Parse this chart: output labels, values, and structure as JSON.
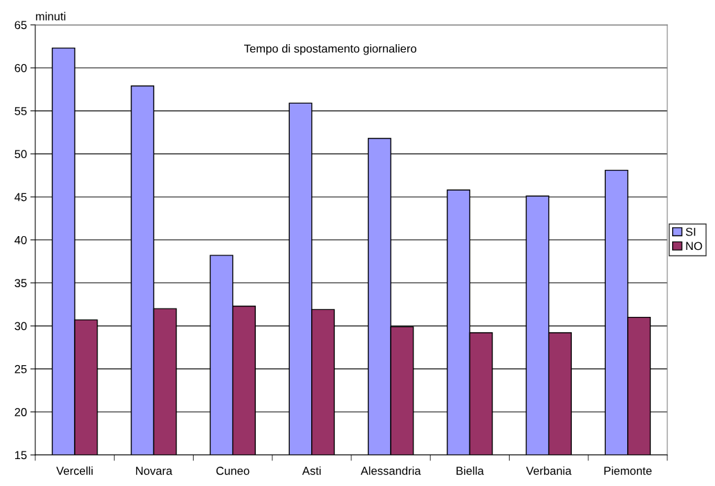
{
  "chart_data": {
    "type": "bar",
    "title": "Tempo di spostamento giornaliero",
    "ylabel": "minuti",
    "categories": [
      "Vercelli",
      "Novara",
      "Cuneo",
      "Asti",
      "Alessandria",
      "Biella",
      "Verbania",
      "Piemonte"
    ],
    "series": [
      {
        "name": "SI",
        "color": "#9999ff",
        "values": [
          62.3,
          57.9,
          38.2,
          55.9,
          51.8,
          45.8,
          45.1,
          48.1
        ]
      },
      {
        "name": "NO",
        "color": "#993366",
        "values": [
          30.7,
          32.0,
          32.3,
          31.9,
          29.9,
          29.2,
          29.2,
          31.0
        ]
      }
    ],
    "ylim": [
      15,
      65
    ],
    "yticks": [
      15,
      20,
      25,
      30,
      35,
      40,
      45,
      50,
      55,
      60,
      65
    ],
    "grid": "y",
    "legend": "right"
  }
}
